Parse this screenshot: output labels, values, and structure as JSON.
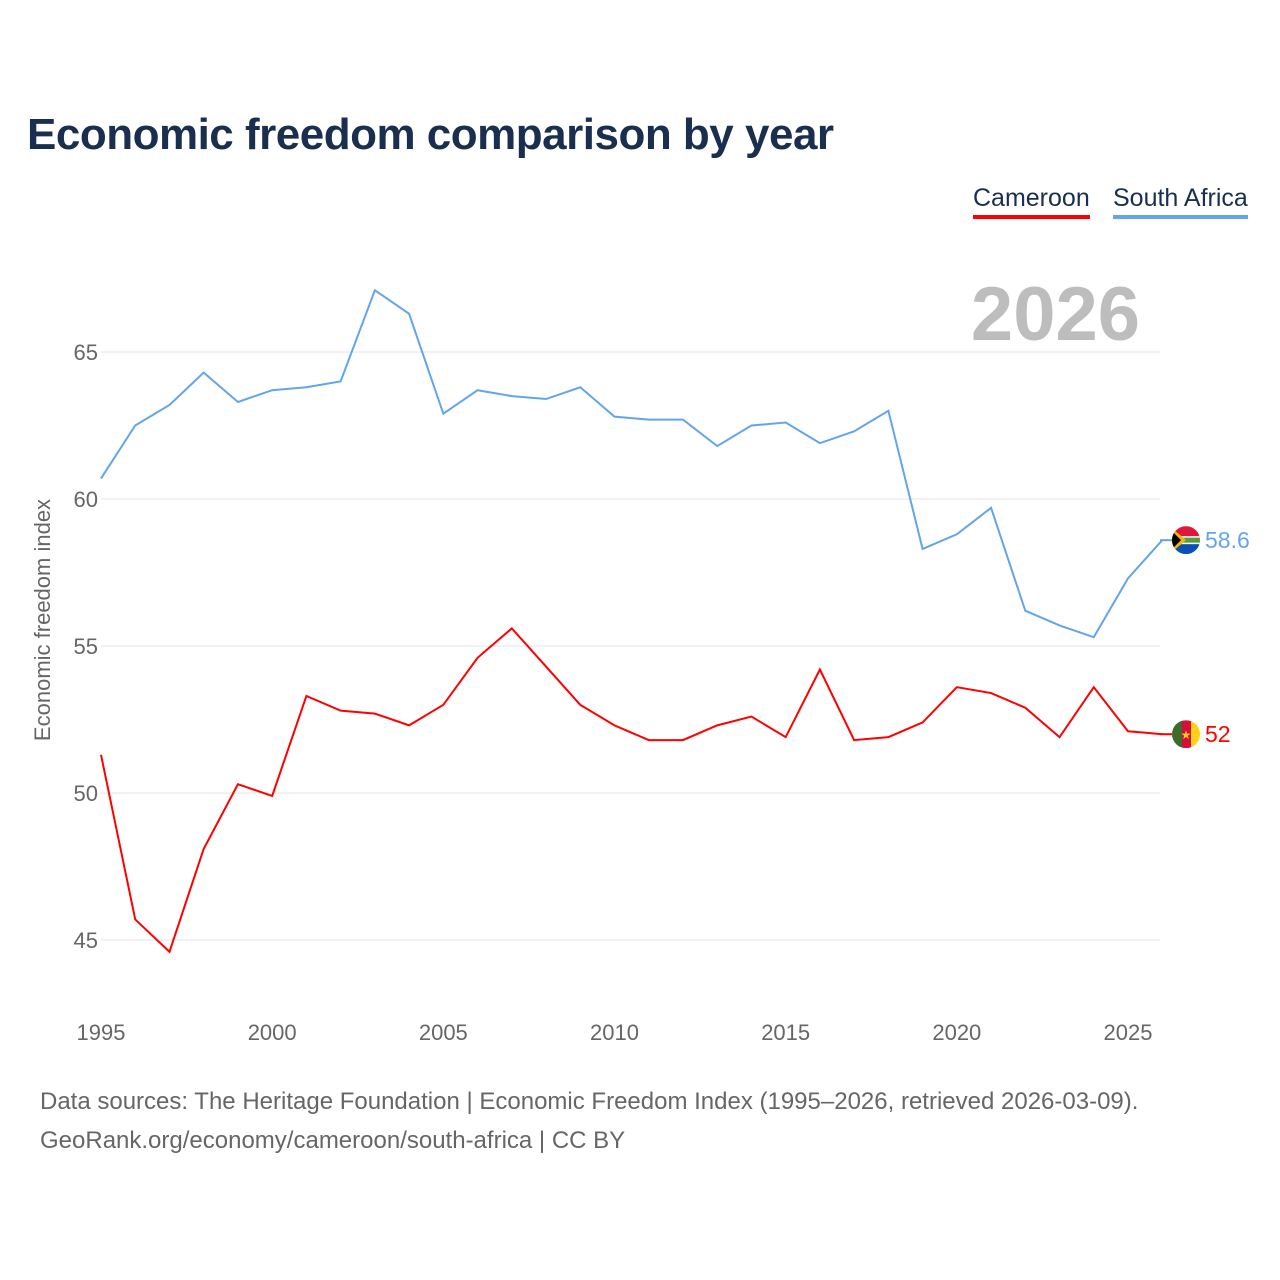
{
  "title": "Economic freedom comparison by year",
  "source_line1": "Data sources: The Heritage Foundation | Economic Freedom Index (1995–2026, retrieved 2026-03-09).",
  "source_line2": "GeoRank.org/economy/cameroon/south-africa | CC BY",
  "chart_data": {
    "type": "line",
    "title": "Economic freedom comparison by year",
    "ylabel": "Economic freedom index",
    "xlabel": "",
    "year_watermark": "2026",
    "ylim": [
      43,
      68
    ],
    "xlim": [
      1995,
      2026
    ],
    "yticks": [
      45,
      50,
      55,
      60,
      65
    ],
    "xticks": [
      1995,
      2000,
      2005,
      2010,
      2015,
      2020,
      2025
    ],
    "grid": true,
    "legend_position": "top-right",
    "x": [
      1995,
      1996,
      1997,
      1998,
      1999,
      2000,
      2001,
      2002,
      2003,
      2004,
      2005,
      2006,
      2007,
      2008,
      2009,
      2010,
      2011,
      2012,
      2013,
      2014,
      2015,
      2016,
      2017,
      2018,
      2019,
      2020,
      2021,
      2022,
      2023,
      2024,
      2025,
      2026
    ],
    "series": [
      {
        "name": "Cameroon",
        "color": "#ff0000",
        "end_label": "52",
        "values": [
          51.3,
          45.7,
          44.6,
          48.1,
          50.3,
          49.9,
          53.3,
          52.8,
          52.7,
          52.3,
          53.0,
          54.6,
          55.6,
          54.3,
          53.0,
          52.3,
          51.8,
          51.8,
          52.3,
          52.6,
          51.9,
          54.2,
          51.8,
          51.9,
          52.4,
          53.6,
          53.4,
          52.9,
          51.9,
          53.6,
          52.1,
          52.0
        ]
      },
      {
        "name": "South Africa",
        "color": "#63a5e9",
        "end_label": "58.6",
        "values": [
          60.7,
          62.5,
          63.2,
          64.3,
          63.3,
          63.7,
          63.8,
          64.0,
          67.1,
          66.3,
          62.9,
          63.7,
          63.5,
          63.4,
          63.8,
          62.8,
          62.7,
          62.7,
          61.8,
          62.5,
          62.6,
          61.9,
          62.3,
          63.0,
          58.3,
          58.8,
          59.7,
          56.2,
          55.7,
          55.3,
          57.3,
          58.6
        ]
      }
    ]
  }
}
